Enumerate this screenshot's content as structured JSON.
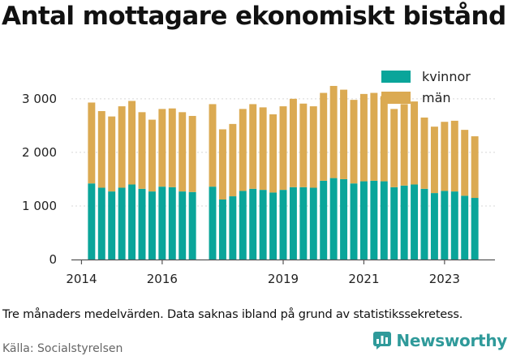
{
  "title": "Antal mottagare ekonomiskt bistånd",
  "note": "Tre månaders medelvärden. Data saknas ibland på grund av statistikssekretess.",
  "source": "Källa: Socialstyrelsen",
  "brand": {
    "name": "Newsworthy",
    "icon": "bar-chart-speech-bubble-icon"
  },
  "colors": {
    "kvinnor": "#0aa59a",
    "man": "#dbaa52",
    "axis": "#555555",
    "grid": "#d8d8d8",
    "brand": "#2f9a9a"
  },
  "chart_data": {
    "type": "bar",
    "stacked": true,
    "x": [
      "2014-04",
      "2014-07",
      "2014-10",
      "2015-01",
      "2015-04",
      "2015-07",
      "2015-10",
      "2016-01",
      "2016-04",
      "2016-07",
      "2016-10",
      "2017-04",
      "2017-07",
      "2017-10",
      "2018-01",
      "2018-04",
      "2018-07",
      "2018-10",
      "2019-01",
      "2019-04",
      "2019-07",
      "2019-10",
      "2020-01",
      "2020-04",
      "2020-07",
      "2020-10",
      "2021-01",
      "2021-04",
      "2021-07",
      "2021-10",
      "2022-01",
      "2022-04",
      "2022-07",
      "2022-10",
      "2023-01",
      "2023-04",
      "2023-07",
      "2023-10"
    ],
    "series": [
      {
        "name": "kvinnor",
        "values": [
          1420,
          1340,
          1270,
          1340,
          1400,
          1320,
          1270,
          1360,
          1350,
          1270,
          1260,
          1360,
          1120,
          1180,
          1280,
          1320,
          1300,
          1250,
          1300,
          1350,
          1350,
          1340,
          1470,
          1520,
          1500,
          1420,
          1460,
          1470,
          1460,
          1350,
          1380,
          1400,
          1320,
          1240,
          1280,
          1270,
          1190,
          1150
        ]
      },
      {
        "name": "män",
        "values": [
          1510,
          1430,
          1400,
          1520,
          1560,
          1430,
          1340,
          1450,
          1470,
          1480,
          1420,
          1540,
          1310,
          1350,
          1530,
          1580,
          1540,
          1460,
          1560,
          1650,
          1560,
          1520,
          1640,
          1720,
          1670,
          1560,
          1630,
          1640,
          1590,
          1460,
          1520,
          1550,
          1330,
          1240,
          1290,
          1320,
          1230,
          1150
        ]
      }
    ],
    "xticks": [
      "2014",
      "2016",
      "2019",
      "2021",
      "2023"
    ],
    "xtick_positions": [
      "2014-01",
      "2016-01",
      "2019-01",
      "2021-01",
      "2023-01"
    ],
    "xlim": [
      "2013-10",
      "2024-04"
    ],
    "yticks": [
      0,
      1000,
      2000,
      3000
    ],
    "ytick_labels": [
      "0",
      "1 000",
      "2 000",
      "3 000"
    ],
    "ylim": [
      0,
      3300
    ],
    "legend": {
      "position": "top-right",
      "entries": [
        "kvinnor",
        "män"
      ]
    },
    "grid": "horizontal",
    "xlabel": "",
    "ylabel": ""
  }
}
